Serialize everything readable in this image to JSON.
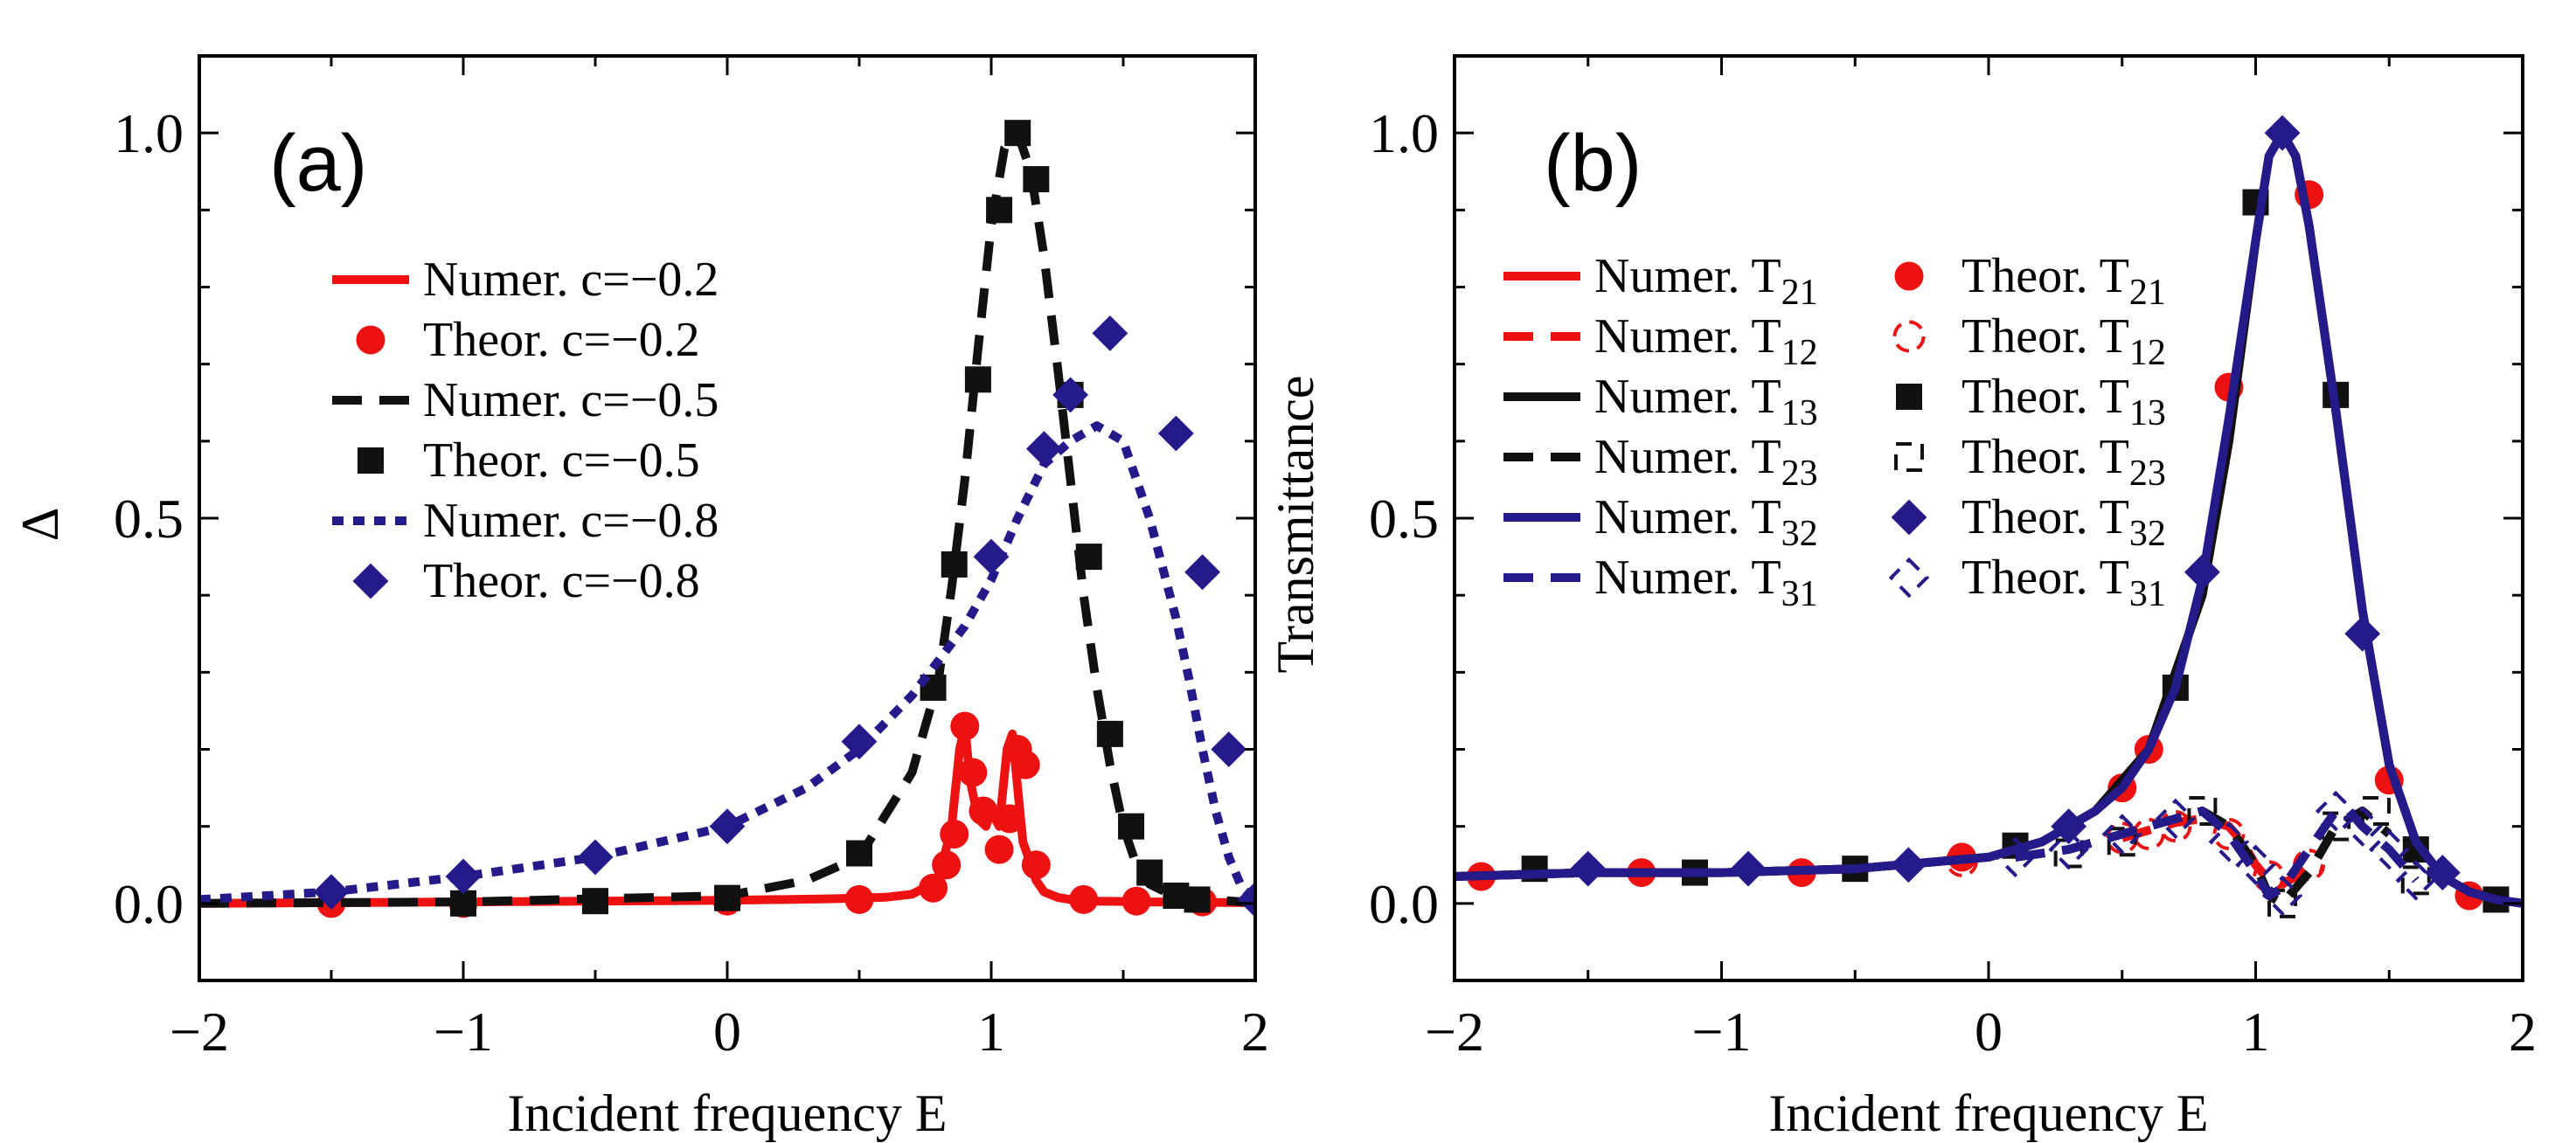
{
  "chart_data": [
    {
      "type": "line",
      "panel_label": "(a)",
      "title": "",
      "xlabel": "Incident frequency E",
      "ylabel": "Δ",
      "xlim": [
        -2,
        2
      ],
      "ylim": [
        -0.1,
        1.1
      ],
      "xticks": [
        -2,
        -1,
        0,
        1,
        2
      ],
      "xtick_labels": [
        "−2",
        "−1",
        "0",
        "1",
        "2"
      ],
      "yticks": [
        0,
        0.5,
        1
      ],
      "ytick_labels": [
        "0.0",
        "0.5",
        "1.0"
      ],
      "grid": false,
      "legend_position": "left",
      "series": [
        {
          "name": "Numer. c=−0.2",
          "kind": "line",
          "style": "solid",
          "color": "#ee1111",
          "x": [
            -2,
            -1,
            0,
            0.4,
            0.6,
            0.7,
            0.8,
            0.85,
            0.88,
            0.9,
            0.92,
            0.95,
            0.98,
            1.0,
            1.03,
            1.06,
            1.08,
            1.1,
            1.12,
            1.14,
            1.17,
            1.2,
            1.25,
            1.3,
            1.4,
            1.6,
            2
          ],
          "y": [
            0,
            0.002,
            0.004,
            0.006,
            0.008,
            0.012,
            0.03,
            0.1,
            0.2,
            0.23,
            0.16,
            0.11,
            0.1,
            0.12,
            0.1,
            0.2,
            0.22,
            0.15,
            0.08,
            0.06,
            0.03,
            0.015,
            0.008,
            0.005,
            0.003,
            0.002,
            0.001
          ]
        },
        {
          "name": "Theor. c=−0.2",
          "kind": "marker",
          "marker": "circle",
          "color": "#ee1111",
          "x": [
            -1.5,
            -1.0,
            0.0,
            0.5,
            0.78,
            0.83,
            0.86,
            0.9,
            0.93,
            0.97,
            1.03,
            1.07,
            1.1,
            1.13,
            1.17,
            1.35,
            1.55,
            1.8
          ],
          "y": [
            0,
            0.0,
            0.003,
            0.005,
            0.02,
            0.05,
            0.09,
            0.23,
            0.17,
            0.12,
            0.07,
            0.11,
            0.2,
            0.18,
            0.05,
            0.005,
            0.003,
            0.002
          ]
        },
        {
          "name": "Numer. c=−0.5",
          "kind": "line",
          "style": "dashed",
          "color": "#111111",
          "x": [
            -2,
            -1,
            0,
            0.3,
            0.5,
            0.7,
            0.8,
            0.85,
            0.9,
            0.95,
            1.0,
            1.05,
            1.1,
            1.15,
            1.2,
            1.25,
            1.3,
            1.35,
            1.4,
            1.45,
            1.5,
            1.55,
            1.6,
            1.7,
            2
          ],
          "y": [
            0,
            0.002,
            0.01,
            0.03,
            0.06,
            0.17,
            0.29,
            0.41,
            0.55,
            0.72,
            0.88,
            0.98,
            1.0,
            0.95,
            0.84,
            0.7,
            0.55,
            0.4,
            0.28,
            0.18,
            0.1,
            0.05,
            0.025,
            0.008,
            0.001
          ]
        },
        {
          "name": "Theor. c=−0.5",
          "kind": "marker",
          "marker": "square",
          "color": "#111111",
          "x": [
            -1.0,
            -0.5,
            0.0,
            0.5,
            0.78,
            0.86,
            0.95,
            1.03,
            1.1,
            1.17,
            1.3,
            1.37,
            1.45,
            1.53,
            1.6,
            1.7,
            1.78
          ],
          "y": [
            0.0,
            0.003,
            0.007,
            0.065,
            0.28,
            0.44,
            0.68,
            0.9,
            1.0,
            0.94,
            0.66,
            0.45,
            0.22,
            0.1,
            0.04,
            0.01,
            0.005
          ]
        },
        {
          "name": "Numer. c=−0.8",
          "kind": "line",
          "style": "dotted",
          "color": "#241a8a",
          "x": [
            -2,
            -1.5,
            -1,
            -0.5,
            0,
            0.3,
            0.5,
            0.7,
            0.9,
            1.0,
            1.1,
            1.2,
            1.3,
            1.4,
            1.5,
            1.6,
            1.7,
            1.75,
            1.8,
            1.85,
            1.9,
            1.95,
            2
          ],
          "y": [
            0.005,
            0.015,
            0.035,
            0.06,
            0.1,
            0.15,
            0.2,
            0.27,
            0.36,
            0.42,
            0.5,
            0.57,
            0.6,
            0.62,
            0.6,
            0.5,
            0.37,
            0.29,
            0.2,
            0.12,
            0.06,
            0.02,
            0.005
          ]
        },
        {
          "name": "Theor. c=−0.8",
          "kind": "marker",
          "marker": "diamond",
          "color": "#241a8a",
          "x": [
            -1.5,
            -1.0,
            -0.5,
            0.0,
            0.5,
            1.0,
            1.2,
            1.3,
            1.45,
            1.7,
            1.8,
            1.9,
            2.0
          ],
          "y": [
            0.015,
            0.035,
            0.06,
            0.1,
            0.21,
            0.45,
            0.59,
            0.66,
            0.74,
            0.61,
            0.43,
            0.2,
            0.005
          ]
        }
      ]
    },
    {
      "type": "line",
      "panel_label": "(b)",
      "title": "",
      "xlabel": "Incident frequency E",
      "ylabel": "Transmittance",
      "xlim": [
        -2,
        2
      ],
      "ylim": [
        -0.1,
        1.1
      ],
      "xticks": [
        -2,
        -1,
        0,
        1,
        2
      ],
      "xtick_labels": [
        "−2",
        "−1",
        "0",
        "1",
        "2"
      ],
      "yticks": [
        0,
        0.5,
        1
      ],
      "ytick_labels": [
        "0.0",
        "0.5",
        "1.0"
      ],
      "grid": false,
      "legend_position": "left",
      "series": [
        {
          "name": "Numer. T21",
          "label_main": "Numer. T",
          "label_sub": "21",
          "kind": "line",
          "style": "solid",
          "color": "#ee1111",
          "x": [
            -2,
            -1.5,
            -1,
            -0.5,
            0,
            0.2,
            0.4,
            0.6,
            0.8,
            0.9,
            1.0,
            1.05,
            1.1,
            1.15,
            1.2,
            1.3,
            1.4,
            1.5,
            1.6,
            1.7,
            1.8,
            1.9,
            2
          ],
          "y": [
            0.035,
            0.04,
            0.04,
            0.045,
            0.06,
            0.08,
            0.12,
            0.2,
            0.4,
            0.6,
            0.86,
            0.97,
            1.0,
            0.97,
            0.88,
            0.64,
            0.38,
            0.18,
            0.08,
            0.035,
            0.015,
            0.005,
            0.0
          ]
        },
        {
          "name": "Theor. T21",
          "label_main": "Theor. T",
          "label_sub": "21",
          "kind": "marker",
          "marker": "circle",
          "color": "#ee1111",
          "x": [
            -1.9,
            -1.3,
            -0.7,
            -0.1,
            0.5,
            0.6,
            0.9,
            1.2,
            1.5,
            1.8
          ],
          "y": [
            0.035,
            0.04,
            0.04,
            0.06,
            0.15,
            0.2,
            0.67,
            0.92,
            0.16,
            0.01
          ]
        },
        {
          "name": "Numer. T12",
          "label_main": "Numer. T",
          "label_sub": "12",
          "kind": "line",
          "style": "dashed",
          "color": "#ee1111",
          "x": [
            0.5,
            0.6,
            0.7,
            0.8,
            0.9,
            0.95,
            1.0,
            1.05,
            1.1,
            1.15,
            1.2,
            1.25
          ],
          "y": [
            0.085,
            0.095,
            0.105,
            0.11,
            0.1,
            0.08,
            0.05,
            0.03,
            0.025,
            0.035,
            0.05,
            0.045
          ]
        },
        {
          "name": "Theor. T12",
          "label_main": "Theor. T",
          "label_sub": "12",
          "kind": "marker",
          "marker": "open-circle",
          "color": "#ee1111",
          "x": [
            -0.1,
            0.5,
            0.6,
            0.7,
            0.9,
            1.05,
            1.2
          ],
          "y": [
            0.055,
            0.085,
            0.09,
            0.1,
            0.09,
            0.035,
            0.05
          ]
        },
        {
          "name": "Numer. T13",
          "label_main": "Numer. T",
          "label_sub": "13",
          "kind": "line",
          "style": "solid",
          "color": "#111111",
          "x": [
            -2,
            -1.5,
            -1,
            -0.5,
            0,
            0.2,
            0.4,
            0.6,
            0.8,
            0.9,
            1.0,
            1.05,
            1.1,
            1.15,
            1.2,
            1.3,
            1.4,
            1.5,
            1.6,
            1.7,
            1.8,
            1.9,
            2
          ],
          "y": [
            0.035,
            0.04,
            0.04,
            0.045,
            0.06,
            0.08,
            0.12,
            0.2,
            0.4,
            0.6,
            0.86,
            0.97,
            1.0,
            0.97,
            0.88,
            0.64,
            0.38,
            0.18,
            0.08,
            0.035,
            0.015,
            0.005,
            0.0
          ]
        },
        {
          "name": "Theor. T13",
          "label_main": "Theor. T",
          "label_sub": "13",
          "kind": "marker",
          "marker": "square",
          "color": "#111111",
          "x": [
            -1.7,
            -1.1,
            -0.5,
            0.1,
            0.7,
            1.0,
            1.3,
            1.6,
            1.9
          ],
          "y": [
            0.045,
            0.04,
            0.045,
            0.075,
            0.28,
            0.91,
            0.66,
            0.07,
            0.005
          ]
        },
        {
          "name": "Numer. T23",
          "label_main": "Numer. T",
          "label_sub": "23",
          "kind": "line",
          "style": "dashed",
          "color": "#111111",
          "x": [
            0.1,
            0.3,
            0.5,
            0.7,
            0.8,
            0.9,
            1.0,
            1.05,
            1.1,
            1.2,
            1.3,
            1.4,
            1.5
          ],
          "y": [
            0.06,
            0.07,
            0.09,
            0.11,
            0.12,
            0.1,
            0.05,
            0.01,
            0.0,
            0.04,
            0.1,
            0.12,
            0.09
          ]
        },
        {
          "name": "Theor. T23",
          "label_main": "Theor. T",
          "label_sub": "23",
          "kind": "marker",
          "marker": "open-square",
          "color": "#111111",
          "x": [
            0.3,
            0.5,
            0.8,
            1.1,
            1.3,
            1.45,
            1.6
          ],
          "y": [
            0.065,
            0.08,
            0.12,
            0.0,
            0.1,
            0.12,
            0.03
          ]
        },
        {
          "name": "Numer. T32",
          "label_main": "Numer. T",
          "label_sub": "32",
          "kind": "line",
          "style": "solid",
          "color": "#241a8a",
          "x": [
            -2,
            -1.5,
            -1,
            -0.5,
            0,
            0.2,
            0.4,
            0.5,
            0.6,
            0.7,
            0.8,
            0.9,
            1.0,
            1.05,
            1.1,
            1.15,
            1.2,
            1.3,
            1.4,
            1.5,
            1.6,
            1.7,
            1.8,
            1.9,
            2
          ],
          "y": [
            0.035,
            0.04,
            0.04,
            0.045,
            0.06,
            0.08,
            0.12,
            0.15,
            0.2,
            0.28,
            0.42,
            0.63,
            0.86,
            0.97,
            1.0,
            0.97,
            0.88,
            0.64,
            0.38,
            0.18,
            0.08,
            0.035,
            0.015,
            0.005,
            0.0
          ]
        },
        {
          "name": "Theor. T32",
          "label_main": "Theor. T",
          "label_sub": "32",
          "kind": "marker",
          "marker": "diamond",
          "color": "#241a8a",
          "x": [
            -1.5,
            -0.9,
            -0.3,
            0.3,
            0.8,
            1.1,
            1.4,
            1.7
          ],
          "y": [
            0.045,
            0.045,
            0.05,
            0.1,
            0.43,
            1.0,
            0.35,
            0.04
          ]
        },
        {
          "name": "Numer. T31",
          "label_main": "Numer. T",
          "label_sub": "31",
          "kind": "line",
          "style": "dashed",
          "color": "#241a8a",
          "x": [
            0.1,
            0.3,
            0.5,
            0.7,
            0.8,
            0.9,
            1.0,
            1.05,
            1.1,
            1.2,
            1.3,
            1.35,
            1.4,
            1.5,
            1.6
          ],
          "y": [
            0.06,
            0.07,
            0.09,
            0.11,
            0.12,
            0.09,
            0.04,
            0.01,
            0.02,
            0.07,
            0.12,
            0.12,
            0.1,
            0.07,
            0.03
          ]
        },
        {
          "name": "Theor. T31",
          "label_main": "Theor. T",
          "label_sub": "31",
          "kind": "marker",
          "marker": "open-diamond",
          "color": "#241a8a",
          "x": [
            0.1,
            0.3,
            0.5,
            0.7,
            0.9,
            1.0,
            1.1,
            1.3,
            1.4,
            1.5,
            1.6
          ],
          "y": [
            0.06,
            0.07,
            0.09,
            0.11,
            0.08,
            0.05,
            0.01,
            0.12,
            0.1,
            0.07,
            0.03
          ]
        }
      ]
    }
  ]
}
